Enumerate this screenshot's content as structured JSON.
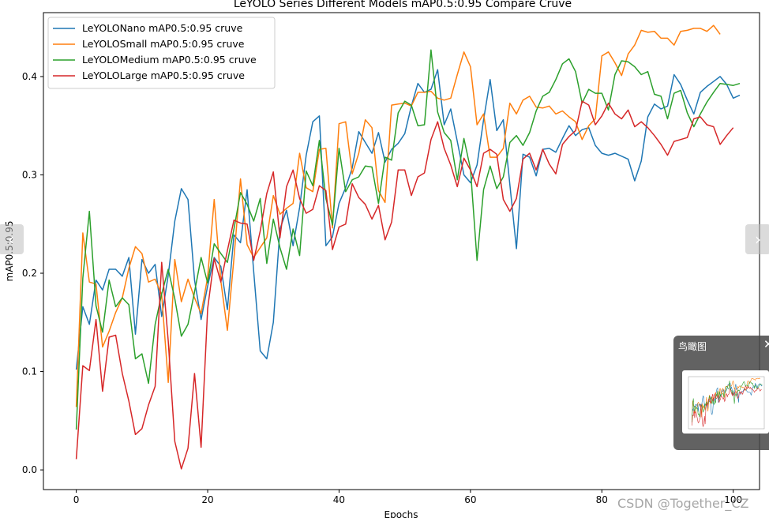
{
  "chart_data": {
    "type": "line",
    "title": "LeYOLO Series Different Models mAP0.5:0.95 Compare Cruve",
    "xlabel": "Epochs",
    "ylabel": "mAP0.5:0.95",
    "xlim": [
      -5,
      104
    ],
    "ylim": [
      -0.02,
      0.465
    ],
    "xticks": [
      0,
      20,
      40,
      60,
      80,
      100
    ],
    "xtick_labels": [
      "0",
      "20",
      "40",
      "60",
      "80",
      "100"
    ],
    "yticks": [
      0.0,
      0.1,
      0.2,
      0.3,
      0.4
    ],
    "ytick_labels": [
      "0.0",
      "0.1",
      "0.2",
      "0.3",
      "0.4"
    ],
    "grid": false,
    "legend_position": "top-left",
    "series": [
      {
        "name": "LeYOLONano mAP0.5:0.95 cruve",
        "color": "#1f77b4",
        "values": [
          0.102,
          0.166,
          0.148,
          0.193,
          0.183,
          0.204,
          0.204,
          0.197,
          0.216,
          0.138,
          0.214,
          0.2,
          0.209,
          0.156,
          0.198,
          0.253,
          0.286,
          0.275,
          0.193,
          0.153,
          0.187,
          0.216,
          0.207,
          0.163,
          0.239,
          0.231,
          0.285,
          0.202,
          0.121,
          0.113,
          0.15,
          0.245,
          0.264,
          0.228,
          0.267,
          0.32,
          0.354,
          0.36,
          0.228,
          0.237,
          0.271,
          0.287,
          0.307,
          0.344,
          0.333,
          0.322,
          0.343,
          0.313,
          0.326,
          0.332,
          0.342,
          0.37,
          0.393,
          0.384,
          0.387,
          0.407,
          0.351,
          0.367,
          0.334,
          0.3,
          0.292,
          0.31,
          0.356,
          0.397,
          0.345,
          0.356,
          0.29,
          0.225,
          0.321,
          0.318,
          0.299,
          0.326,
          0.327,
          0.323,
          0.337,
          0.35,
          0.34,
          0.346,
          0.348,
          0.33,
          0.322,
          0.32,
          0.322,
          0.319,
          0.316,
          0.294,
          0.314,
          0.359,
          0.372,
          0.367,
          0.37,
          0.402,
          0.392,
          0.376,
          0.362,
          0.384,
          0.39,
          0.395,
          0.4,
          0.392,
          0.378,
          0.381
        ]
      },
      {
        "name": "LeYOLOSmall mAP0.5:0.95 cruve",
        "color": "#ff7f0e",
        "values": [
          0.064,
          0.241,
          0.191,
          0.189,
          0.125,
          0.141,
          0.16,
          0.175,
          0.205,
          0.227,
          0.22,
          0.191,
          0.194,
          0.178,
          0.089,
          0.214,
          0.171,
          0.194,
          0.175,
          0.159,
          0.196,
          0.275,
          0.192,
          0.142,
          0.215,
          0.296,
          0.229,
          0.216,
          0.226,
          0.236,
          0.279,
          0.26,
          0.266,
          0.271,
          0.322,
          0.287,
          0.283,
          0.326,
          0.327,
          0.246,
          0.352,
          0.354,
          0.301,
          0.322,
          0.356,
          0.348,
          0.284,
          0.272,
          0.371,
          0.372,
          0.373,
          0.37,
          0.384,
          0.384,
          0.385,
          0.378,
          0.376,
          0.378,
          0.402,
          0.425,
          0.41,
          0.351,
          0.362,
          0.318,
          0.318,
          0.327,
          0.373,
          0.362,
          0.376,
          0.38,
          0.369,
          0.368,
          0.37,
          0.362,
          0.365,
          0.359,
          0.354,
          0.336,
          0.35,
          0.357,
          0.421,
          0.425,
          0.414,
          0.401,
          0.423,
          0.432,
          0.447,
          0.445,
          0.446,
          0.439,
          0.439,
          0.432,
          0.446,
          0.447,
          0.449,
          0.449,
          0.446,
          0.452,
          0.443
        ]
      },
      {
        "name": "LeYOLOMedium mAP0.5:0.95 cruve",
        "color": "#2ca02c",
        "values": [
          0.041,
          0.195,
          0.263,
          0.167,
          0.14,
          0.193,
          0.166,
          0.175,
          0.168,
          0.113,
          0.118,
          0.088,
          0.148,
          0.179,
          0.204,
          0.174,
          0.136,
          0.148,
          0.181,
          0.216,
          0.19,
          0.23,
          0.22,
          0.211,
          0.245,
          0.282,
          0.27,
          0.253,
          0.276,
          0.21,
          0.255,
          0.226,
          0.204,
          0.245,
          0.218,
          0.304,
          0.289,
          0.335,
          0.276,
          0.249,
          0.327,
          0.283,
          0.295,
          0.298,
          0.309,
          0.308,
          0.271,
          0.318,
          0.315,
          0.363,
          0.375,
          0.371,
          0.35,
          0.351,
          0.427,
          0.364,
          0.343,
          0.335,
          0.295,
          0.337,
          0.306,
          0.213,
          0.285,
          0.309,
          0.286,
          0.298,
          0.333,
          0.34,
          0.33,
          0.343,
          0.365,
          0.38,
          0.384,
          0.397,
          0.413,
          0.418,
          0.405,
          0.373,
          0.387,
          0.383,
          0.383,
          0.366,
          0.402,
          0.416,
          0.415,
          0.41,
          0.402,
          0.405,
          0.382,
          0.38,
          0.357,
          0.383,
          0.386,
          0.363,
          0.349,
          0.362,
          0.374,
          0.384,
          0.393,
          0.392,
          0.391,
          0.393
        ]
      },
      {
        "name": "LeYOLOLarge mAP0.5:0.95 cruve",
        "color": "#d62728",
        "values": [
          0.011,
          0.106,
          0.101,
          0.153,
          0.08,
          0.135,
          0.137,
          0.098,
          0.07,
          0.036,
          0.042,
          0.066,
          0.085,
          0.211,
          0.131,
          0.029,
          0.001,
          0.022,
          0.098,
          0.023,
          0.164,
          0.215,
          0.191,
          0.223,
          0.254,
          0.251,
          0.25,
          0.213,
          0.243,
          0.281,
          0.303,
          0.236,
          0.288,
          0.305,
          0.276,
          0.261,
          0.265,
          0.289,
          0.284,
          0.224,
          0.247,
          0.25,
          0.291,
          0.277,
          0.27,
          0.255,
          0.269,
          0.234,
          0.252,
          0.305,
          0.305,
          0.279,
          0.298,
          0.302,
          0.336,
          0.354,
          0.327,
          0.31,
          0.288,
          0.317,
          0.305,
          0.288,
          0.322,
          0.326,
          0.321,
          0.275,
          0.263,
          0.276,
          0.316,
          0.322,
          0.305,
          0.326,
          0.311,
          0.301,
          0.331,
          0.339,
          0.345,
          0.375,
          0.371,
          0.351,
          0.36,
          0.373,
          0.362,
          0.357,
          0.366,
          0.349,
          0.354,
          0.348,
          0.34,
          0.331,
          0.32,
          0.334,
          0.336,
          0.338,
          0.357,
          0.359,
          0.351,
          0.349,
          0.331,
          0.34,
          0.348
        ]
      }
    ]
  },
  "ui": {
    "nav_prev_glyph": "‹",
    "nav_next_glyph": "›",
    "birdseye_title": "鸟瞰图",
    "birdseye_close_glyph": "✕",
    "watermark": "CSDN @Together_CZ"
  }
}
